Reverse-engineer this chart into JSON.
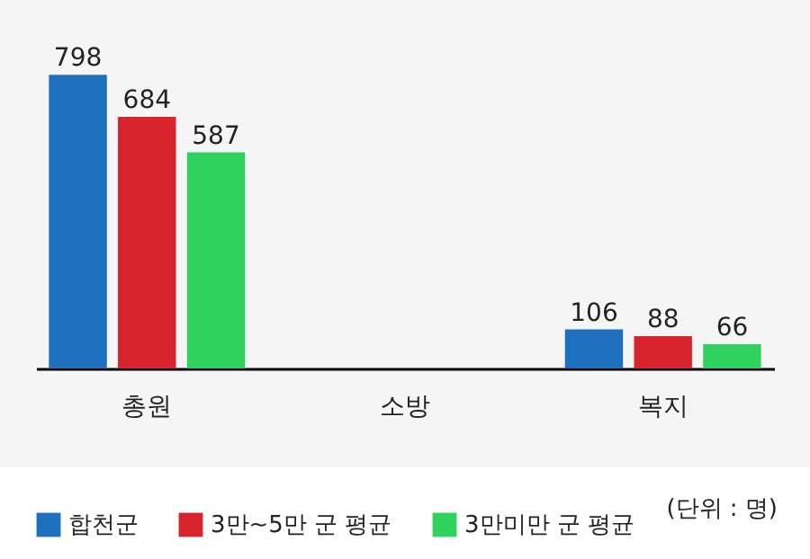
{
  "chart_data": {
    "type": "bar",
    "categories": [
      "총원",
      "소방",
      "복지"
    ],
    "series": [
      {
        "name": "합천군",
        "color": "#1f6fbf",
        "values": [
          798,
          null,
          106
        ]
      },
      {
        "name": "3만~5만 군 평균",
        "color": "#d8252d",
        "values": [
          684,
          null,
          88
        ]
      },
      {
        "name": "3만미만 군 평균",
        "color": "#2fd35c",
        "values": [
          587,
          null,
          66
        ]
      }
    ],
    "data_labels": true,
    "legend": "bottom",
    "annotations": [
      "(단위 : 명)"
    ]
  }
}
